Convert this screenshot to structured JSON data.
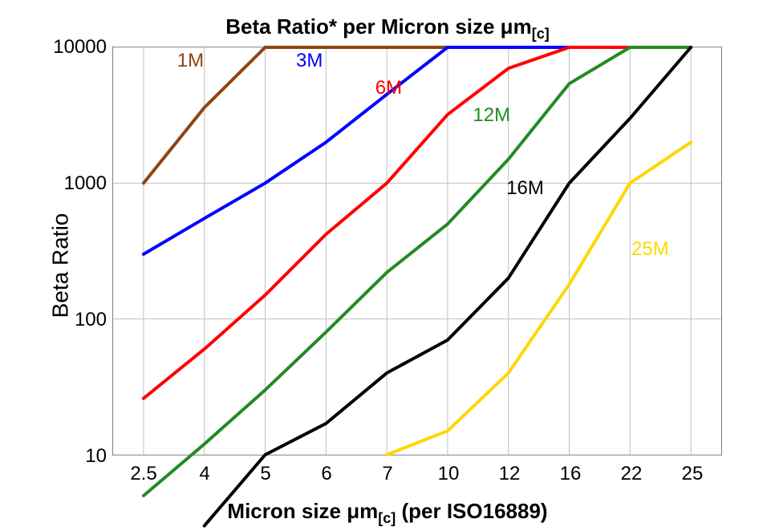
{
  "title_html": "Beta Ratio* per Micron size &mu;m<span class='sub'>[c]</span>",
  "xlabel_html": "Micron size &mu;m<span class='sub'>[c]</span> (per ISO16889)",
  "ylabel": "Beta Ratio",
  "chart": {
    "type": "line-log",
    "background_color": "#ffffff",
    "grid_color": "#c0c0c0",
    "border_color": "#808080",
    "line_width": 4,
    "x_categories": [
      "2.5",
      "4",
      "5",
      "6",
      "7",
      "10",
      "12",
      "16",
      "22",
      "25"
    ],
    "y_log_min": 10,
    "y_log_max": 10000,
    "y_ticks": [
      10,
      100,
      1000,
      10000
    ],
    "series": [
      {
        "label": "1M",
        "color": "#8b4513",
        "label_xy": [
          0.55,
          3.98
        ],
        "points": [
          [
            0,
            1000
          ],
          [
            1,
            3600
          ],
          [
            2,
            10000
          ],
          [
            9,
            10000
          ]
        ]
      },
      {
        "label": "3M",
        "color": "#0000ff",
        "label_xy": [
          2.5,
          3.98
        ],
        "points": [
          [
            0,
            300
          ],
          [
            1,
            550
          ],
          [
            2,
            1000
          ],
          [
            3,
            2000
          ],
          [
            4,
            4500
          ],
          [
            5,
            10000
          ],
          [
            9,
            10000
          ]
        ]
      },
      {
        "label": "6M",
        "color": "#ff0000",
        "label_xy": [
          3.8,
          3.78
        ],
        "points": [
          [
            0,
            26
          ],
          [
            1,
            60
          ],
          [
            2,
            150
          ],
          [
            3,
            420
          ],
          [
            4,
            1000
          ],
          [
            5,
            3200
          ],
          [
            6,
            7000
          ],
          [
            7,
            10000
          ],
          [
            9,
            10000
          ]
        ]
      },
      {
        "label": "12M",
        "color": "#228b22",
        "label_xy": [
          5.4,
          3.58
        ],
        "points": [
          [
            0,
            5
          ],
          [
            1,
            12
          ],
          [
            2,
            30
          ],
          [
            3,
            80
          ],
          [
            4,
            220
          ],
          [
            5,
            500
          ],
          [
            6,
            1500
          ],
          [
            7,
            5400
          ],
          [
            8,
            10000
          ],
          [
            9,
            10000
          ]
        ]
      },
      {
        "label": "16M",
        "color": "#000000",
        "label_xy": [
          5.95,
          3.05
        ],
        "points": [
          [
            1,
            3
          ],
          [
            2,
            10
          ],
          [
            3,
            17
          ],
          [
            4,
            40
          ],
          [
            5,
            70
          ],
          [
            6,
            200
          ],
          [
            7,
            1000
          ],
          [
            8,
            3000
          ],
          [
            9,
            10000
          ]
        ]
      },
      {
        "label": "25M",
        "color": "#ffd700",
        "label_xy": [
          8.0,
          2.6
        ],
        "points": [
          [
            4,
            10
          ],
          [
            5,
            15
          ],
          [
            6,
            40
          ],
          [
            7,
            180
          ],
          [
            8,
            1000
          ],
          [
            9,
            2000
          ]
        ]
      }
    ]
  }
}
